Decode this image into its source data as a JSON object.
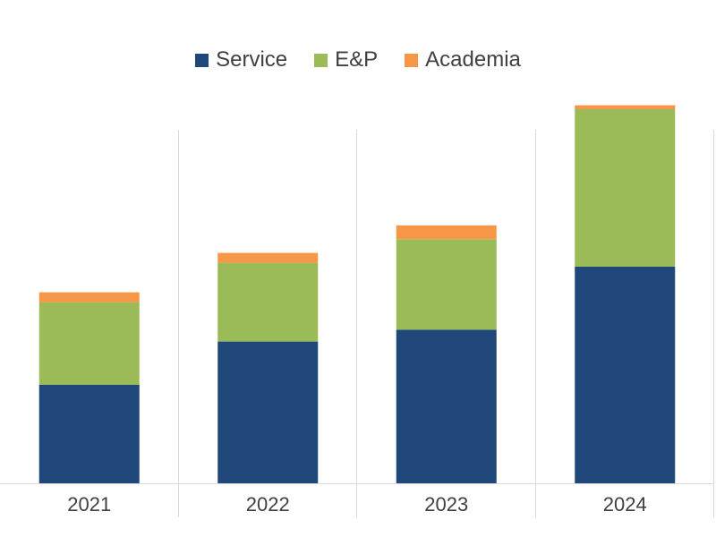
{
  "chart_data": {
    "type": "bar",
    "stacked": true,
    "title": "",
    "xlabel": "",
    "ylabel": "",
    "categories": [
      "2021",
      "2022",
      "2023",
      "2024"
    ],
    "ylim": [
      0,
      100
    ],
    "series": [
      {
        "name": "Service",
        "color": "#1f477a",
        "values": [
          25,
          36,
          39,
          55
        ]
      },
      {
        "name": "E&P",
        "color": "#9bbb59",
        "values": [
          21,
          20,
          23,
          40
        ]
      },
      {
        "name": "Academia",
        "color": "#f79646",
        "values": [
          2.5,
          2.5,
          3.5,
          1
        ]
      }
    ],
    "legend_position": "top-center",
    "grid": "vertical-separators"
  }
}
